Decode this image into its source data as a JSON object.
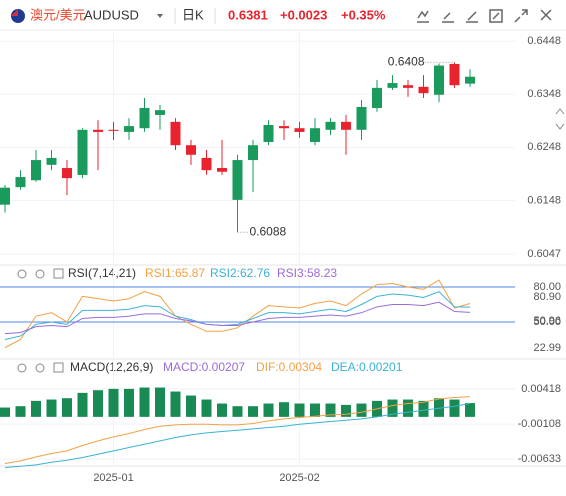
{
  "header": {
    "pair": "澳元/美元",
    "symbol": "AUDUSD",
    "period": "日K",
    "price": "0.6381",
    "change": "+0.0023",
    "change_pct": "+0.35%"
  },
  "chart_data": [
    {
      "type": "candlestick",
      "categories": [
        null,
        null,
        null,
        null,
        null,
        null,
        null,
        "2025-01",
        null,
        null,
        null,
        null,
        null,
        null,
        null,
        null,
        null,
        null,
        null,
        "2025-02",
        null,
        null,
        null,
        null,
        null,
        null,
        null,
        null,
        null,
        null,
        null
      ],
      "open": [
        0.614,
        0.6173,
        0.6186,
        0.6215,
        0.6209,
        0.6196,
        0.6281,
        0.6281,
        0.6277,
        0.6284,
        0.6309,
        0.6296,
        0.6252,
        0.6228,
        0.6209,
        0.6149,
        0.6224,
        0.6258,
        0.6288,
        0.6284,
        0.6258,
        0.6281,
        0.6296,
        0.6281,
        0.6322,
        0.636,
        0.6365,
        0.6362,
        0.6347,
        0.6405,
        0.6368
      ],
      "high": [
        0.6177,
        0.6205,
        0.6243,
        0.6243,
        0.6224,
        0.6284,
        0.6299,
        0.6296,
        0.6303,
        0.6341,
        0.6328,
        0.6303,
        0.6262,
        0.6243,
        0.6262,
        0.6234,
        0.6262,
        0.6299,
        0.6299,
        0.6296,
        0.6303,
        0.6303,
        0.6309,
        0.6337,
        0.6375,
        0.6384,
        0.6375,
        0.6384,
        0.6406,
        0.6408,
        0.6395
      ],
      "low": [
        0.6125,
        0.6168,
        0.6183,
        0.6205,
        0.6158,
        0.619,
        0.6205,
        0.6262,
        0.6262,
        0.6277,
        0.6281,
        0.6243,
        0.6215,
        0.6196,
        0.6196,
        0.6088,
        0.6164,
        0.6252,
        0.6262,
        0.6266,
        0.6252,
        0.6271,
        0.6234,
        0.6262,
        0.6315,
        0.6356,
        0.6343,
        0.6341,
        0.6333,
        0.636,
        0.6362
      ],
      "close": [
        0.6172,
        0.6192,
        0.6224,
        0.6228,
        0.619,
        0.6281,
        0.6277,
        0.6279,
        0.6288,
        0.6322,
        0.6318,
        0.6252,
        0.6234,
        0.6205,
        0.6202,
        0.6224,
        0.6252,
        0.629,
        0.6284,
        0.6277,
        0.6284,
        0.6296,
        0.6281,
        0.6324,
        0.636,
        0.6369,
        0.636,
        0.635,
        0.6402,
        0.6365,
        0.6381
      ],
      "up_color": "#1a9a5c",
      "down_color": "#e8232d",
      "ylim": [
        0.6032,
        0.6469
      ],
      "yticks": [
        0.6448,
        0.6348,
        0.6248,
        0.6148,
        0.6047
      ],
      "grid": true
    },
    {
      "type": "line",
      "title": "RSI(7,14,21)",
      "series": [
        {
          "name": "RSI1:65.87",
          "color": "#f4a044",
          "values": [
            28,
            35,
            55,
            58,
            50,
            72,
            70,
            68,
            70,
            76,
            72,
            55,
            48,
            42,
            42,
            45,
            55,
            64,
            63,
            62,
            66,
            68,
            64,
            74,
            82,
            83,
            80,
            78,
            86,
            62,
            65.87
          ]
        },
        {
          "name": "RSI2:62.76",
          "color": "#3ab2d6",
          "values": [
            35,
            38,
            48,
            50,
            48,
            60,
            60,
            60,
            61,
            64,
            63,
            55,
            52,
            48,
            47,
            48,
            53,
            58,
            58,
            57,
            59,
            61,
            59,
            65,
            72,
            74,
            73,
            71,
            76,
            63,
            62.76
          ]
        },
        {
          "name": "RSI3:58.23",
          "color": "#9b6cd8",
          "values": [
            40,
            41,
            46,
            47,
            46,
            53,
            54,
            54,
            55,
            57,
            57,
            53,
            51,
            48,
            47,
            47,
            50,
            53,
            54,
            54,
            55,
            56,
            55,
            58,
            63,
            65,
            65,
            64,
            67,
            59,
            58.23
          ]
        }
      ],
      "ylim": [
        19.1,
        94.6
      ],
      "yticks": [
        {
          "value": 80,
          "label": "80.00"
        },
        {
          "value": 50,
          "label": "50.00"
        }
      ],
      "reference_color": "#4f86e8",
      "extreme_labels": [
        "80.90",
        "50.96",
        "22.99"
      ]
    },
    {
      "type": "combo",
      "title": "MACD(12,26,9)",
      "bar_name": "MACD:0.00207",
      "bar_color": "#1a8a55",
      "bar_legend_color": "#9b6cd8",
      "values": [
        0.0014,
        0.0016,
        0.0024,
        0.0026,
        0.0028,
        0.0036,
        0.004,
        0.0042,
        0.0042,
        0.0044,
        0.0044,
        0.0038,
        0.0032,
        0.0026,
        0.002,
        0.0016,
        0.0016,
        0.002,
        0.0022,
        0.002,
        0.002,
        0.002,
        0.0018,
        0.002,
        0.0024,
        0.0026,
        0.0026,
        0.0024,
        0.0028,
        0.0026,
        0.00207
      ],
      "series": [
        {
          "name": "DIF:0.00304",
          "color": "#f4a044",
          "values": [
            -0.007,
            -0.0066,
            -0.006,
            -0.0055,
            -0.0051,
            -0.0043,
            -0.0036,
            -0.003,
            -0.0025,
            -0.0019,
            -0.0014,
            -0.0012,
            -0.0011,
            -0.0011,
            -0.0012,
            -0.0012,
            -0.001,
            -0.0006,
            -0.0003,
            -0.0001,
            0.0001,
            0.0003,
            0.0004,
            0.0007,
            0.0012,
            0.0017,
            0.002,
            0.0022,
            0.0027,
            0.0029,
            0.00304
          ]
        },
        {
          "name": "DEA:0.00201",
          "color": "#3ab2d6",
          "values": [
            -0.0076,
            -0.0074,
            -0.0072,
            -0.0068,
            -0.0065,
            -0.0061,
            -0.0056,
            -0.0051,
            -0.0046,
            -0.0041,
            -0.0036,
            -0.0031,
            -0.0027,
            -0.0024,
            -0.0022,
            -0.002,
            -0.0018,
            -0.0016,
            -0.0014,
            -0.0011,
            -0.0009,
            -0.0007,
            -0.0005,
            -0.0003,
            0.0,
            0.0004,
            0.0007,
            0.001,
            0.0013,
            0.0016,
            0.00201
          ]
        }
      ],
      "ylim": [
        -0.00767,
        0.00703
      ],
      "yticks": [
        0.00418,
        -0.00108,
        -0.00633
      ]
    }
  ]
}
